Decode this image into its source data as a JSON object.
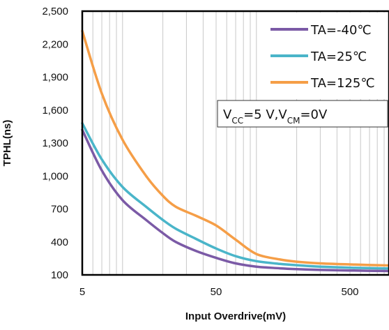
{
  "chart_data": {
    "type": "line",
    "title": "",
    "xlabel": "Input Overdrive(mV)",
    "ylabel": "TPHL(ns)",
    "x_scale": "log",
    "xlim": [
      5,
      1000
    ],
    "ylim": [
      100,
      2500
    ],
    "x_ticks": [
      5,
      50,
      500
    ],
    "x_tick_labels": [
      "5",
      "50",
      "500"
    ],
    "y_ticks": [
      100,
      400,
      700,
      1000,
      1300,
      1600,
      1900,
      2200,
      2500
    ],
    "y_tick_labels": [
      "100",
      "400",
      "700",
      "1,000",
      "1,300",
      "1,600",
      "1,900",
      "2,200",
      "2,500"
    ],
    "grid": "vertical",
    "legend_position": "top-right",
    "series": [
      {
        "name": "TA=-40℃",
        "color": "#7b5aa6",
        "points": [
          [
            5,
            1420
          ],
          [
            7,
            1050
          ],
          [
            10,
            780
          ],
          [
            15,
            600
          ],
          [
            20,
            480
          ],
          [
            25,
            400
          ],
          [
            35,
            320
          ],
          [
            50,
            255
          ],
          [
            70,
            205
          ],
          [
            100,
            175
          ],
          [
            150,
            160
          ],
          [
            200,
            152
          ],
          [
            300,
            145
          ],
          [
            500,
            140
          ],
          [
            1000,
            135
          ]
        ]
      },
      {
        "name": "TA=25℃",
        "color": "#4ab5c9",
        "points": [
          [
            5,
            1480
          ],
          [
            7,
            1150
          ],
          [
            10,
            900
          ],
          [
            15,
            720
          ],
          [
            20,
            600
          ],
          [
            25,
            520
          ],
          [
            35,
            430
          ],
          [
            50,
            340
          ],
          [
            70,
            270
          ],
          [
            100,
            225
          ],
          [
            150,
            200
          ],
          [
            200,
            188
          ],
          [
            300,
            175
          ],
          [
            500,
            165
          ],
          [
            1000,
            158
          ]
        ]
      },
      {
        "name": "TA=125℃",
        "color": "#f59e47",
        "points": [
          [
            5,
            2320
          ],
          [
            7,
            1750
          ],
          [
            10,
            1330
          ],
          [
            15,
            1000
          ],
          [
            20,
            820
          ],
          [
            25,
            720
          ],
          [
            35,
            640
          ],
          [
            50,
            550
          ],
          [
            70,
            420
          ],
          [
            100,
            290
          ],
          [
            150,
            240
          ],
          [
            200,
            220
          ],
          [
            300,
            205
          ],
          [
            500,
            195
          ],
          [
            1000,
            185
          ]
        ]
      }
    ],
    "annotation": {
      "parts": [
        {
          "text": "V",
          "sub": false
        },
        {
          "text": "CC",
          "sub": true
        },
        {
          "text": "=5 V,V",
          "sub": false
        },
        {
          "text": "CM",
          "sub": true
        },
        {
          "text": "=0V",
          "sub": false
        }
      ]
    }
  }
}
